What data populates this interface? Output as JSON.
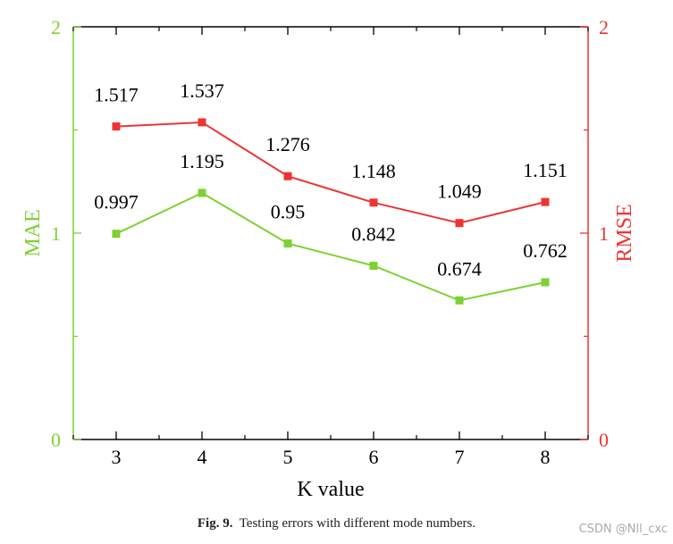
{
  "chart_data": {
    "type": "line",
    "xlabel": "K value",
    "ylabel_left": "MAE",
    "ylabel_right": "RMSE",
    "x": [
      3,
      4,
      5,
      6,
      7,
      8
    ],
    "ylim_left": [
      0,
      2
    ],
    "ylim_right": [
      0,
      2
    ],
    "left_ticks": [
      "0",
      "1",
      "2"
    ],
    "right_ticks": [
      "0",
      "1",
      "2"
    ],
    "series": [
      {
        "axis": "left",
        "color": "#7ed132",
        "values": [
          0.997,
          1.195,
          0.95,
          0.842,
          0.674,
          0.762
        ],
        "labels": [
          "0.997",
          "1.195",
          "0.95",
          "0.842",
          "0.674",
          "0.762"
        ]
      },
      {
        "axis": "right",
        "color": "#ee3333",
        "values": [
          1.517,
          1.537,
          1.276,
          1.148,
          1.049,
          1.151
        ],
        "labels": [
          "1.517",
          "1.537",
          "1.276",
          "1.148",
          "1.049",
          "1.151"
        ]
      }
    ],
    "left_color": "#7ed132",
    "right_color": "#ee3333"
  },
  "caption": {
    "label": "Fig. 9.",
    "text": "Testing errors with different mode numbers."
  },
  "watermark": "CSDN @Nll_cxc"
}
